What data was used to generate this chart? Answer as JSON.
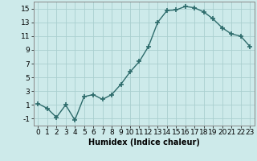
{
  "x": [
    0,
    1,
    2,
    3,
    4,
    5,
    6,
    7,
    8,
    9,
    10,
    11,
    12,
    13,
    14,
    15,
    16,
    17,
    18,
    19,
    20,
    21,
    22,
    23
  ],
  "y": [
    1.2,
    0.5,
    -0.8,
    1.0,
    -1.2,
    2.2,
    2.5,
    1.8,
    2.5,
    4.0,
    5.8,
    7.3,
    9.5,
    13.0,
    14.7,
    14.8,
    15.3,
    15.1,
    14.5,
    13.5,
    12.2,
    11.3,
    11.0,
    9.5
  ],
  "line_color": "#2d6b6b",
  "marker": "+",
  "marker_size": 4,
  "bg_color": "#cdeaea",
  "grid_color": "#aacfcf",
  "xlabel": "Humidex (Indice chaleur)",
  "xlim": [
    -0.5,
    23.5
  ],
  "ylim": [
    -2,
    16
  ],
  "yticks": [
    -1,
    1,
    3,
    5,
    7,
    9,
    11,
    13,
    15
  ],
  "xticks": [
    0,
    1,
    2,
    3,
    4,
    5,
    6,
    7,
    8,
    9,
    10,
    11,
    12,
    13,
    14,
    15,
    16,
    17,
    18,
    19,
    20,
    21,
    22,
    23
  ],
  "xtick_labels": [
    "0",
    "1",
    "2",
    "3",
    "4",
    "5",
    "6",
    "7",
    "8",
    "9",
    "10",
    "11",
    "12",
    "13",
    "14",
    "15",
    "16",
    "17",
    "18",
    "19",
    "20",
    "21",
    "22",
    "23"
  ],
  "xlabel_fontsize": 7,
  "tick_fontsize": 6.5,
  "line_width": 1.0,
  "marker_linewidth": 1.2
}
